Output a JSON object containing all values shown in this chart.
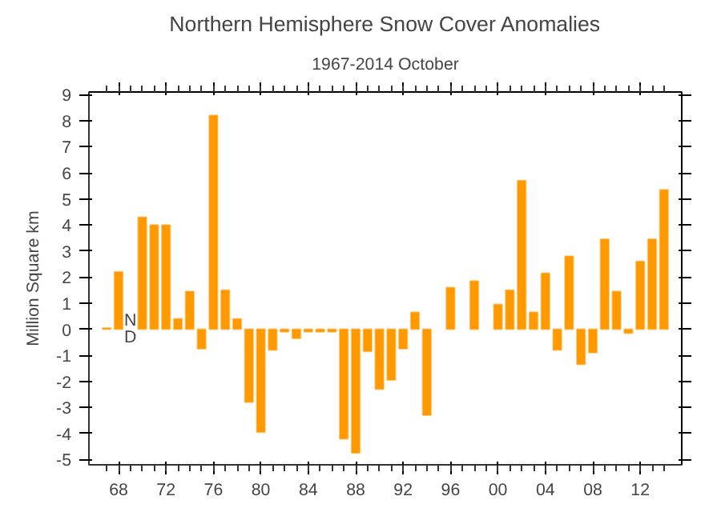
{
  "chart_data": {
    "type": "bar",
    "title": "Northern Hemisphere Snow Cover Anomalies",
    "subtitle": "1967-2014 October",
    "ylabel": "Million Square km",
    "x": [
      1967,
      1968,
      1969,
      1970,
      1971,
      1972,
      1973,
      1974,
      1975,
      1976,
      1977,
      1978,
      1979,
      1980,
      1981,
      1982,
      1983,
      1984,
      1985,
      1986,
      1987,
      1988,
      1989,
      1990,
      1991,
      1992,
      1993,
      1994,
      1995,
      1996,
      1997,
      1998,
      1999,
      2000,
      2001,
      2002,
      2003,
      2004,
      2005,
      2006,
      2007,
      2008,
      2009,
      2010,
      2011,
      2012,
      2013,
      2014
    ],
    "values": [
      0.05,
      2.2,
      null,
      4.3,
      4.0,
      4.0,
      0.4,
      1.45,
      -0.75,
      8.2,
      1.5,
      0.4,
      -2.8,
      -3.95,
      -0.8,
      -0.1,
      -0.35,
      -0.1,
      -0.1,
      -0.1,
      -4.2,
      -4.75,
      -0.85,
      -2.3,
      -1.95,
      -0.75,
      0.65,
      -3.3,
      null,
      1.6,
      null,
      1.85,
      null,
      0.95,
      1.5,
      5.7,
      0.65,
      2.15,
      -0.8,
      2.8,
      -1.35,
      -0.9,
      3.45,
      1.45,
      -0.15,
      2.6,
      3.45,
      5.35
    ],
    "color": "#ff9900",
    "xlim": [
      1965.5,
      2015.5
    ],
    "ylim": [
      -5.2,
      9.1
    ],
    "xticks": [
      {
        "value": 1968,
        "label": "68"
      },
      {
        "value": 1972,
        "label": "72"
      },
      {
        "value": 1976,
        "label": "76"
      },
      {
        "value": 1980,
        "label": "80"
      },
      {
        "value": 1984,
        "label": "84"
      },
      {
        "value": 1988,
        "label": "88"
      },
      {
        "value": 1992,
        "label": "92"
      },
      {
        "value": 1996,
        "label": "96"
      },
      {
        "value": 2000,
        "label": "00"
      },
      {
        "value": 2004,
        "label": "04"
      },
      {
        "value": 2008,
        "label": "08"
      },
      {
        "value": 2012,
        "label": "12"
      }
    ],
    "yticks": [
      -5,
      -4,
      -3,
      -2,
      -1,
      0,
      1,
      2,
      3,
      4,
      5,
      6,
      7,
      8,
      9
    ],
    "annotations": [
      {
        "text": "N\nD",
        "x": 1969,
        "y": 0
      }
    ],
    "grid": false
  }
}
